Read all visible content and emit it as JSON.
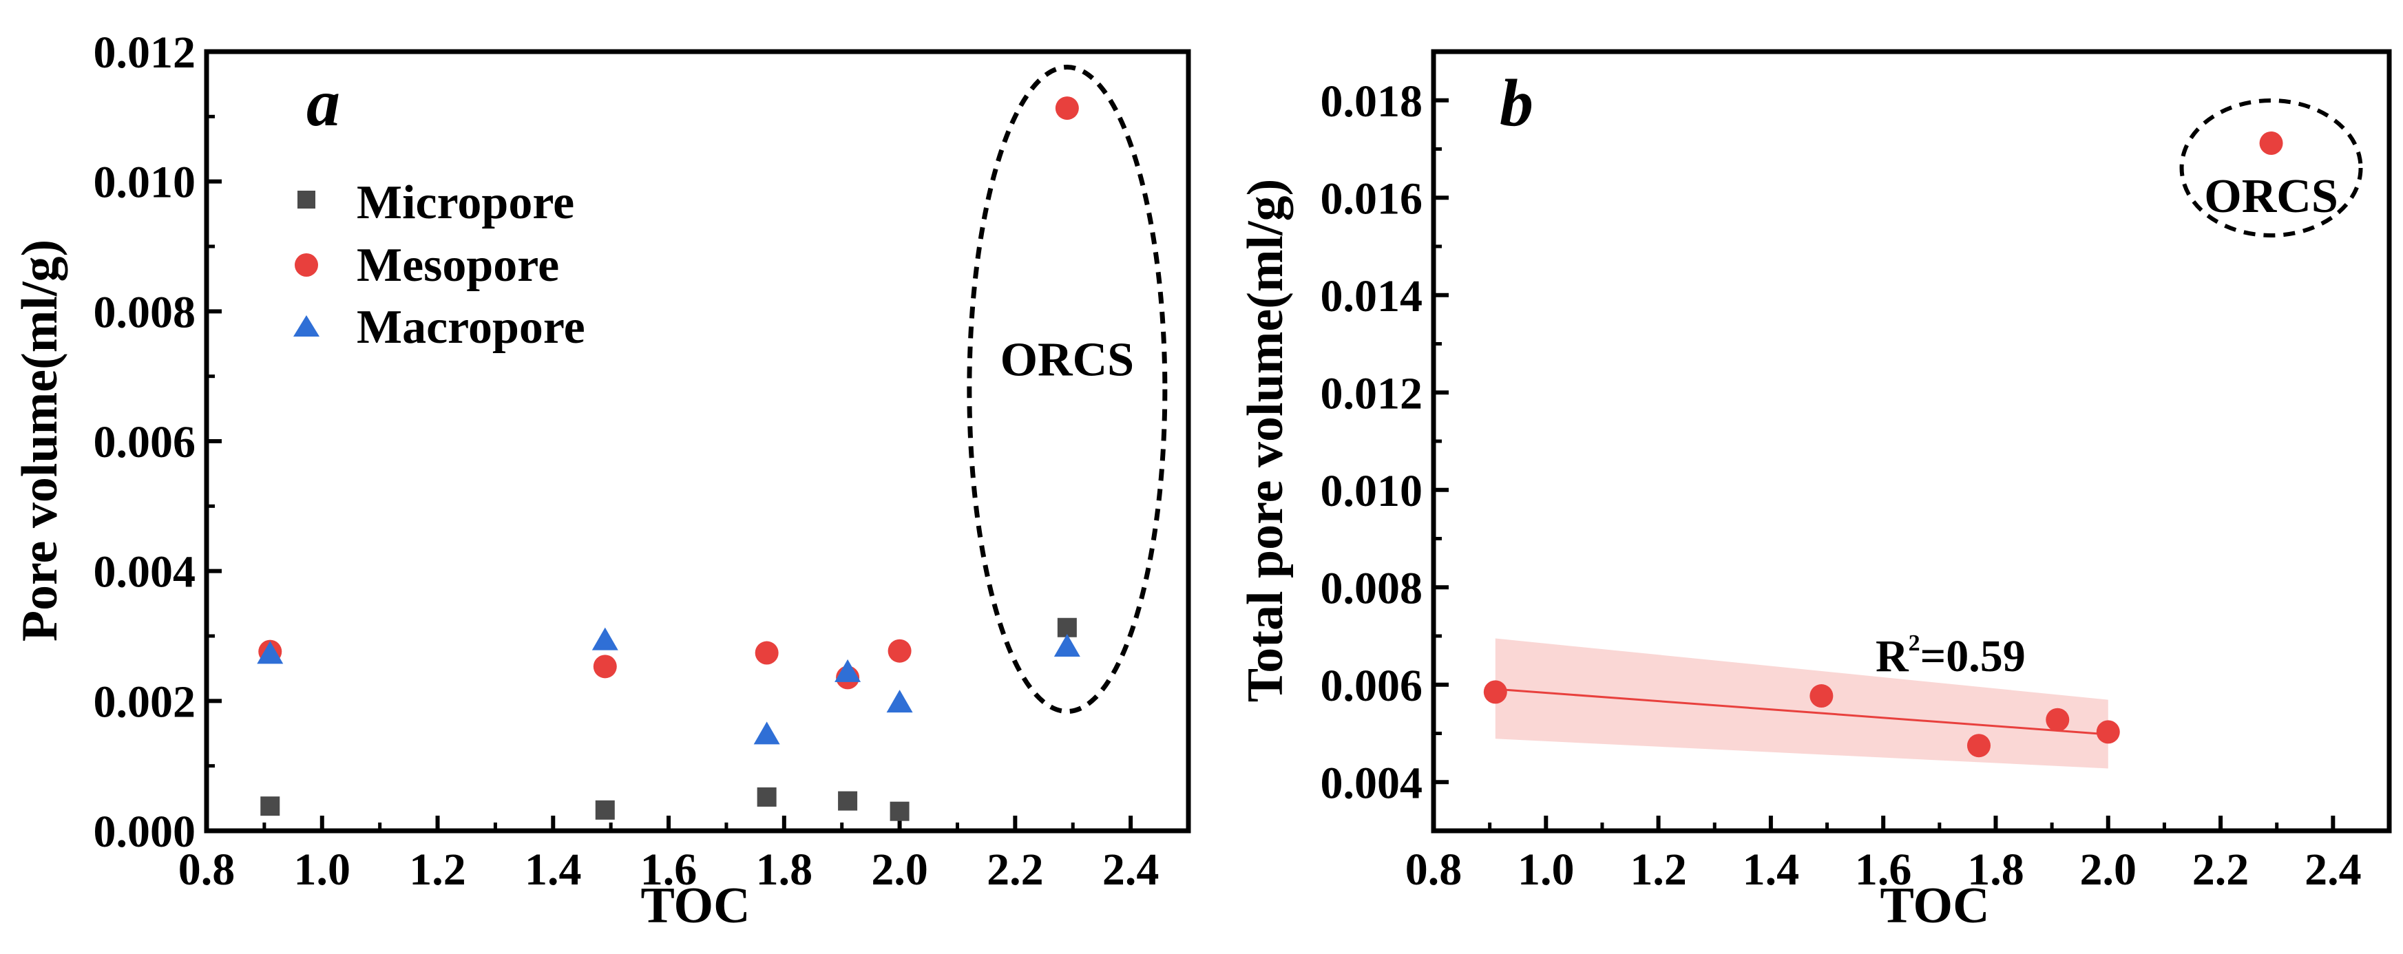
{
  "chart_data": [
    {
      "type": "scatter",
      "panel_label": "a",
      "xlabel": "TOC",
      "ylabel": "Pore volume(ml/g)",
      "xlim": [
        0.8,
        2.5
      ],
      "ylim": [
        0.0,
        0.012
      ],
      "xticks": [
        "0.8",
        "1.0",
        "1.2",
        "1.4",
        "1.6",
        "1.8",
        "2.0",
        "2.2",
        "2.4"
      ],
      "yticks": [
        "0.000",
        "0.002",
        "0.004",
        "0.006",
        "0.008",
        "0.010",
        "0.012"
      ],
      "legend_position": "upper-left",
      "series": [
        {
          "name": "Micropore",
          "marker": "square",
          "color": "#4a4a4a",
          "points": [
            [
              0.91,
              0.00038
            ],
            [
              1.49,
              0.00032
            ],
            [
              1.77,
              0.00052
            ],
            [
              1.91,
              0.00046
            ],
            [
              2.0,
              0.0003
            ],
            [
              2.29,
              0.00313
            ]
          ]
        },
        {
          "name": "Mesopore",
          "marker": "circle",
          "color": "#e8403d",
          "points": [
            [
              0.91,
              0.00276
            ],
            [
              1.49,
              0.00253
            ],
            [
              1.77,
              0.00274
            ],
            [
              1.91,
              0.00236
            ],
            [
              2.0,
              0.00277
            ],
            [
              2.29,
              0.01113
            ]
          ]
        },
        {
          "name": "Macropore",
          "marker": "triangle",
          "color": "#2f6fd6",
          "points": [
            [
              0.91,
              0.00272
            ],
            [
              1.49,
              0.00293
            ],
            [
              1.77,
              0.00148
            ],
            [
              1.91,
              0.00244
            ],
            [
              2.0,
              0.00197
            ],
            [
              2.29,
              0.00283
            ]
          ]
        }
      ],
      "annotation": "ORCS"
    },
    {
      "type": "scatter",
      "panel_label": "b",
      "xlabel": "TOC",
      "ylabel": "Total pore volume(ml/g)",
      "xlim": [
        0.8,
        2.5
      ],
      "ylim": [
        0.003,
        0.019
      ],
      "xticks": [
        "0.8",
        "1.0",
        "1.2",
        "1.4",
        "1.6",
        "1.8",
        "2.0",
        "2.2",
        "2.4"
      ],
      "yticks": [
        "0.004",
        "0.006",
        "0.008",
        "0.010",
        "0.012",
        "0.014",
        "0.016",
        "0.018"
      ],
      "series": [
        {
          "name": "Total pore volume",
          "marker": "circle",
          "color": "#e8403d",
          "points": [
            [
              0.91,
              0.00585
            ],
            [
              1.49,
              0.00577
            ],
            [
              1.77,
              0.00475
            ],
            [
              1.91,
              0.00528
            ],
            [
              2.0,
              0.00503
            ],
            [
              2.29,
              0.01712
            ]
          ]
        }
      ],
      "fit": {
        "x_range": [
          0.91,
          2.0
        ],
        "line": [
          0.00591,
          0.00498
        ],
        "band_upper": [
          0.00695,
          0.00569
        ],
        "band_lower": [
          0.00489,
          0.00428
        ],
        "line_color": "#e8403d",
        "band_color": "#f8c6c3"
      },
      "r2_prefix": "R",
      "r2_superscript": "2",
      "r2_value": "=0.59",
      "annotation": "ORCS"
    }
  ]
}
